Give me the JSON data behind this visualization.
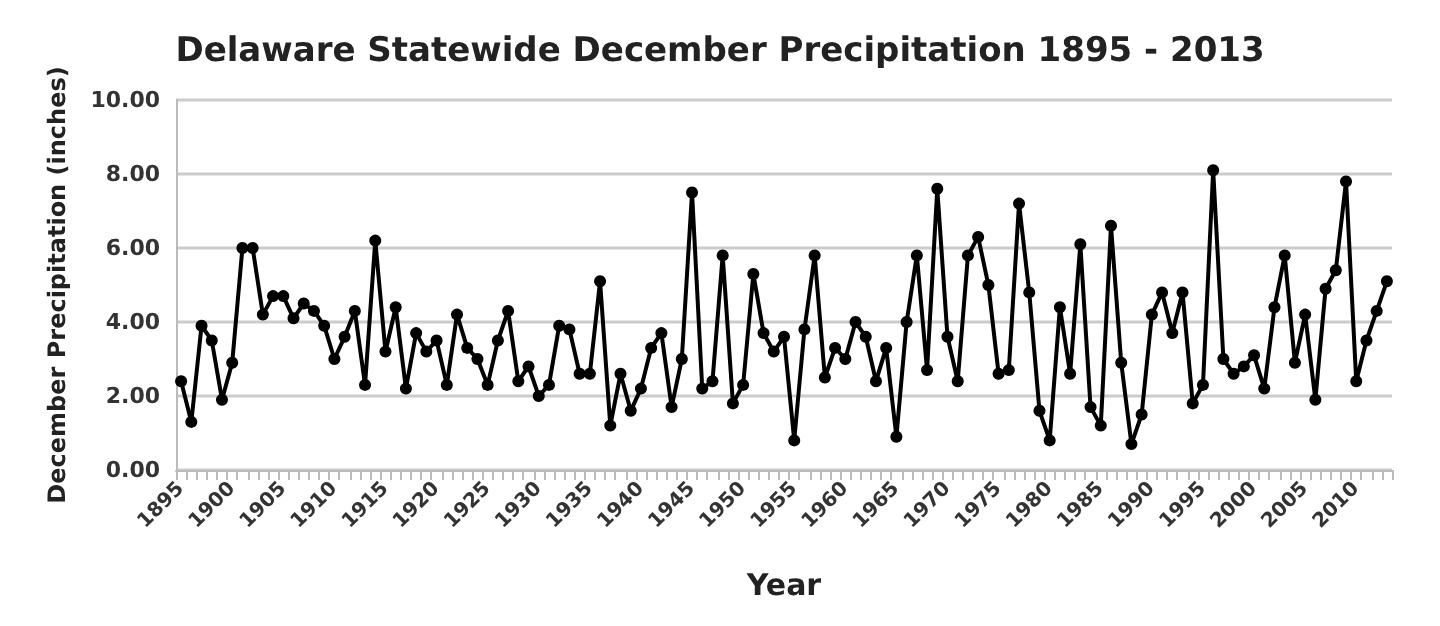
{
  "chart_data": {
    "type": "line",
    "title": "Delaware Statewide December Precipitation 1895 - 2013",
    "xlabel": "Year",
    "ylabel": "December Precipitation (inches)",
    "categories": [
      "1895",
      null,
      null,
      null,
      null,
      "1900",
      null,
      null,
      null,
      null,
      "1905",
      null,
      null,
      null,
      null,
      "1910",
      null,
      null,
      null,
      null,
      "1915",
      null,
      null,
      null,
      null,
      "1920",
      null,
      null,
      null,
      null,
      "1925",
      null,
      null,
      null,
      null,
      "1930",
      null,
      null,
      null,
      null,
      "1935",
      null,
      null,
      null,
      null,
      "1940",
      null,
      null,
      null,
      null,
      "1945",
      null,
      null,
      null,
      null,
      "1950",
      null,
      null,
      null,
      null,
      "1955",
      null,
      null,
      null,
      null,
      "1960",
      null,
      null,
      null,
      null,
      "1965",
      null,
      null,
      null,
      null,
      "1970",
      null,
      null,
      null,
      null,
      "1975",
      null,
      null,
      null,
      null,
      "1980",
      null,
      null,
      null,
      null,
      "1985",
      null,
      null,
      null,
      null,
      "1990",
      null,
      null,
      null,
      null,
      "1995",
      null,
      null,
      null,
      null,
      "2000",
      null,
      null,
      null,
      null,
      "2005",
      null,
      null,
      null,
      null,
      "2010",
      null,
      null,
      null
    ],
    "series": [
      {
        "color": "#000000",
        "values": [
          2.4,
          1.3,
          3.9,
          3.5,
          1.9,
          2.9,
          6.0,
          6.0,
          4.2,
          4.7,
          4.7,
          4.1,
          4.5,
          4.3,
          3.9,
          3.0,
          3.6,
          4.3,
          2.3,
          6.2,
          3.2,
          4.4,
          2.2,
          3.7,
          3.2,
          3.5,
          2.3,
          4.2,
          3.3,
          3.0,
          2.3,
          3.5,
          4.3,
          2.4,
          2.8,
          2.0,
          2.3,
          3.9,
          3.8,
          2.6,
          2.6,
          5.1,
          1.2,
          2.6,
          1.6,
          2.2,
          3.3,
          3.7,
          1.7,
          3.0,
          7.5,
          2.2,
          2.4,
          5.8,
          1.8,
          2.3,
          5.3,
          3.7,
          3.2,
          3.6,
          0.8,
          3.8,
          5.8,
          2.5,
          3.3,
          3.0,
          4.0,
          3.6,
          2.4,
          3.3,
          0.9,
          4.0,
          5.8,
          2.7,
          7.6,
          3.6,
          2.4,
          5.8,
          6.3,
          5.0,
          2.6,
          2.7,
          7.2,
          4.8,
          1.6,
          0.8,
          4.4,
          2.6,
          6.1,
          1.7,
          1.2,
          6.6,
          2.9,
          0.7,
          1.5,
          4.2,
          4.8,
          3.7,
          4.8,
          1.8,
          2.3,
          8.1,
          3.0,
          2.6,
          2.8,
          3.1,
          2.2,
          4.4,
          5.8,
          2.9,
          4.2,
          1.9,
          4.9,
          5.4,
          7.8,
          2.4,
          3.5,
          4.3,
          5.1
        ]
      }
    ],
    "ylim": [
      0,
      10
    ],
    "yticks": [
      {
        "value": 0,
        "label": "0.00"
      },
      {
        "value": 2,
        "label": "2.00"
      },
      {
        "value": 4,
        "label": "4.00"
      },
      {
        "value": 6,
        "label": "6.00"
      },
      {
        "value": 8,
        "label": "8.00"
      },
      {
        "value": 10,
        "label": "10.00"
      }
    ],
    "grid": "y",
    "marker": "circle",
    "line_style": "solid"
  }
}
